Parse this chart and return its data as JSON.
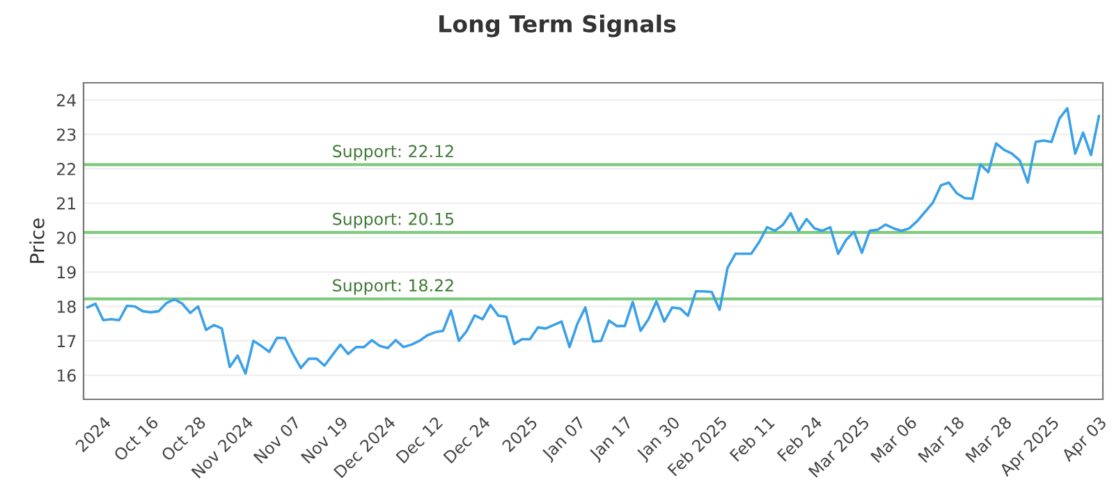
{
  "chart_data": {
    "type": "line",
    "title": "Long Term Signals",
    "ylabel": "Price",
    "categories": [
      null,
      null,
      "2024",
      null,
      null,
      null,
      null,
      null,
      "Oct 16",
      null,
      null,
      null,
      null,
      null,
      "Oct 28",
      null,
      null,
      null,
      null,
      null,
      "Nov 2024",
      null,
      null,
      null,
      null,
      null,
      "Nov 07",
      null,
      null,
      null,
      null,
      null,
      "Nov 19",
      null,
      null,
      null,
      null,
      null,
      "Dec 2024",
      null,
      null,
      null,
      null,
      null,
      "Dec 12",
      null,
      null,
      null,
      null,
      null,
      "Dec 24",
      null,
      null,
      null,
      null,
      null,
      "2025",
      null,
      null,
      null,
      null,
      null,
      "Jan 07",
      null,
      null,
      null,
      null,
      null,
      "Jan 17",
      null,
      null,
      null,
      null,
      null,
      "Jan 30",
      null,
      null,
      null,
      null,
      null,
      "Feb 2025",
      null,
      null,
      null,
      null,
      null,
      "Feb 11",
      null,
      null,
      null,
      null,
      null,
      "Feb 24",
      null,
      null,
      null,
      null,
      null,
      "Mar 2025",
      null,
      null,
      null,
      null,
      null,
      "Mar 06",
      null,
      null,
      null,
      null,
      null,
      "Mar 18",
      null,
      null,
      null,
      null,
      null,
      "Mar 28",
      null,
      null,
      null,
      null,
      null,
      "Apr 2025",
      null,
      null,
      null,
      null,
      null,
      "Apr 03"
    ],
    "series": [
      {
        "color": "#3aa0e8",
        "values": [
          17.97,
          18.08,
          17.6,
          17.63,
          17.6,
          18.02,
          18.0,
          17.86,
          17.83,
          17.86,
          18.1,
          18.21,
          18.08,
          17.81,
          18.0,
          17.32,
          17.46,
          17.36,
          16.24,
          16.57,
          16.05,
          17.0,
          16.85,
          16.68,
          17.09,
          17.08,
          16.62,
          16.21,
          16.48,
          16.48,
          16.28,
          16.59,
          16.89,
          16.62,
          16.82,
          16.82,
          17.02,
          16.85,
          16.79,
          17.02,
          16.82,
          16.89,
          17.0,
          17.16,
          17.25,
          17.29,
          17.88,
          17.0,
          17.29,
          17.74,
          17.63,
          18.04,
          17.73,
          17.7,
          16.91,
          17.05,
          17.05,
          17.39,
          17.36,
          17.46,
          17.56,
          16.82,
          17.5,
          17.97,
          16.98,
          17.0,
          17.59,
          17.43,
          17.43,
          18.13,
          17.29,
          17.63,
          18.15,
          17.56,
          17.97,
          17.94,
          17.73,
          18.44,
          18.44,
          18.42,
          17.9,
          19.12,
          19.53,
          19.53,
          19.53,
          19.87,
          20.3,
          20.2,
          20.37,
          20.71,
          20.2,
          20.54,
          20.27,
          20.2,
          20.3,
          19.53,
          19.93,
          20.17,
          19.56,
          20.2,
          20.23,
          20.38,
          20.27,
          20.2,
          20.27,
          20.48,
          20.75,
          21.02,
          21.52,
          21.6,
          21.29,
          21.15,
          21.13,
          22.13,
          21.9,
          22.74,
          22.55,
          22.44,
          22.24,
          21.6,
          22.78,
          22.82,
          22.78,
          23.46,
          23.76,
          22.44,
          23.05,
          22.4,
          23.53
        ]
      }
    ],
    "ylim": [
      15.3,
      24.5
    ],
    "yticks": [
      16,
      17,
      18,
      19,
      20,
      21,
      22,
      23,
      24
    ],
    "grid": "y",
    "marker": "none",
    "line_style": "solid",
    "ref_lines": [
      {
        "axis": "y",
        "value": 22.12,
        "label": "Support: 22.12",
        "color": "#7dc97d"
      },
      {
        "axis": "y",
        "value": 20.15,
        "label": "Support: 20.15",
        "color": "#7dc97d"
      },
      {
        "axis": "y",
        "value": 18.22,
        "label": "Support: 18.22",
        "color": "#7dc97d"
      }
    ]
  }
}
